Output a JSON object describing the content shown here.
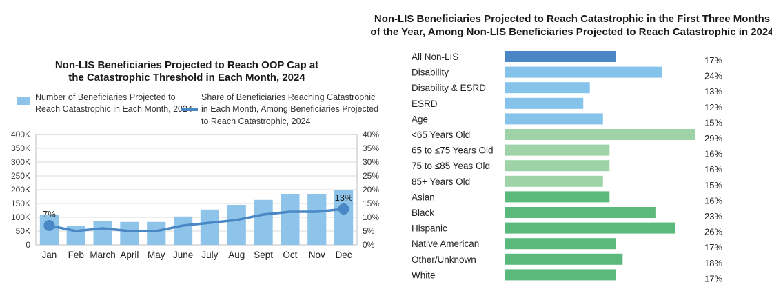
{
  "chart_data": [
    {
      "type": "bar",
      "title_lines": [
        "Non-LIS Beneficiaries Projected to Reach OOP Cap at",
        "the Catastrophic Threshold in Each Month, 2024"
      ],
      "categories": [
        "Jan",
        "Feb",
        "March",
        "April",
        "May",
        "June",
        "July",
        "Aug",
        "Sept",
        "Oct",
        "Nov",
        "Dec"
      ],
      "series": [
        {
          "name_lines": [
            "Number of Beneficiaries Projected to",
            "Reach Catastrophic in Each Month, 2024"
          ],
          "kind": "bar",
          "axis": "left",
          "values": [
            108000,
            70000,
            85000,
            83000,
            83000,
            103000,
            128000,
            145000,
            163000,
            185000,
            185000,
            200000
          ]
        },
        {
          "name_lines": [
            "Share of Beneficiaries Reaching Catastrophic",
            "in Each Month, Among Beneficiaries Projected",
            "to Reach Catastrophic, 2024"
          ],
          "kind": "line",
          "axis": "right",
          "values": [
            7,
            5,
            6,
            5,
            5,
            7,
            8,
            9,
            11,
            12,
            12,
            13
          ]
        }
      ],
      "data_labels": [
        {
          "index": 0,
          "text": "7%"
        },
        {
          "index": 11,
          "text": "13%"
        }
      ],
      "y_left": {
        "min": 0,
        "max": 400000,
        "step": 50000,
        "ticks": [
          "0",
          "50K",
          "100K",
          "150K",
          "200K",
          "250K",
          "300K",
          "350K",
          "400K"
        ]
      },
      "y_right": {
        "min": 0,
        "max": 40,
        "step": 5,
        "ticks": [
          "0%",
          "5%",
          "10%",
          "15%",
          "20%",
          "25%",
          "30%",
          "35%",
          "40%"
        ]
      },
      "grid": true,
      "legend": "top",
      "colors": {
        "bar": "#8ec4ea",
        "line": "#4a87c5",
        "grid": "#d9d9d9",
        "frame": "#bfbfbf"
      }
    },
    {
      "type": "bar",
      "orientation": "horizontal",
      "title_lines": [
        "Non-LIS Beneficiaries Projected to Reach Catastrophic in the First Three Months",
        "of the Year, Among Non-LIS Beneficiaries Projected to Reach Catastrophic in 2024"
      ],
      "categories": [
        "All Non-LIS",
        "Disability",
        "Disability & ESRD",
        "ESRD",
        "Age",
        "<65 Years Old",
        "65 to ≤75 Years Old",
        "75 to ≤85 Yeas Old",
        "85+ Years Old",
        "Asian",
        "Black",
        "Hispanic",
        "Native American",
        "Other/Unknown",
        "White"
      ],
      "values": [
        17,
        24,
        13,
        12,
        15,
        29,
        16,
        16,
        15,
        16,
        23,
        26,
        17,
        18,
        17
      ],
      "labels": [
        "17%",
        "24%",
        "13%",
        "12%",
        "15%",
        "29%",
        "16%",
        "16%",
        "15%",
        "16%",
        "23%",
        "26%",
        "17%",
        "18%",
        "17%"
      ],
      "colors": [
        "#4a86c6",
        "#86c3eb",
        "#86c3eb",
        "#86c3eb",
        "#86c3eb",
        "#9dd3a6",
        "#9dd3a6",
        "#9dd3a6",
        "#9dd3a6",
        "#5bb97b",
        "#5bb97b",
        "#5bb97b",
        "#5bb97b",
        "#5bb97b",
        "#5bb97b"
      ],
      "xlim": [
        0,
        29
      ]
    }
  ]
}
